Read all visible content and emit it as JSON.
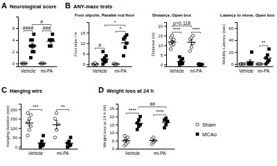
{
  "chart_data": [
    {
      "type": "scatter",
      "panel": "A",
      "title": "Neurological score",
      "categories": [
        "Vehicle",
        "mi-PA"
      ],
      "ylim": [
        -0.5,
        8
      ],
      "yticks": [
        0,
        2,
        4,
        6
      ],
      "series": [
        {
          "name": "Sham",
          "color": "#ffffff",
          "marker": "circle",
          "points": [
            [
              0,
              0,
              0,
              0,
              0,
              0,
              0,
              0
            ],
            [
              0,
              0,
              0,
              0,
              0
            ]
          ],
          "values": [
            0,
            0
          ],
          "errors": [
            0,
            0
          ]
        },
        {
          "name": "MCAo",
          "color": "#000000",
          "marker": "square",
          "points": [
            [
              1,
              2,
              2,
              3,
              3,
              3,
              4,
              4,
              5
            ],
            [
              3,
              3,
              4,
              4,
              4,
              5
            ]
          ],
          "values": [
            3,
            3.8
          ],
          "errors": [
            0.44,
            0.31
          ]
        }
      ],
      "annotations": [
        {
          "text": "####",
          "category": "Vehicle"
        },
        {
          "text": "###",
          "category": "mi-PA"
        },
        {
          "text": "#",
          "series": "MCAo"
        }
      ]
    },
    {
      "type": "scatter",
      "panel": "B",
      "panel_title": "ANY-maze tests",
      "title": "Foot slips/m, Parallel rod floor",
      "ylabel": "Foot slips / m",
      "categories": [
        "Vehicle",
        "mi-PA"
      ],
      "ylim": [
        -1,
        20
      ],
      "yticks": [
        0,
        5,
        10,
        15
      ],
      "series": [
        {
          "name": "Sham",
          "color": "#ffffff",
          "marker": "circle",
          "points": [
            [
              0,
              0,
              0,
              0,
              0.3,
              0,
              0,
              0.5
            ],
            [
              0,
              0,
              0,
              0.4,
              0
            ]
          ],
          "values": [
            0.1,
            0.1
          ],
          "errors": [
            0.07,
            0.08
          ]
        },
        {
          "name": "MCAo",
          "color": "#000000",
          "marker": "square",
          "points": [
            [
              0,
              1,
              1.5,
              2,
              3,
              4,
              6
            ],
            [
              4,
              8,
              10,
              12,
              13,
              14
            ]
          ],
          "values": [
            2.5,
            10.2
          ],
          "errors": [
            0.8,
            1.5
          ]
        }
      ],
      "annotations": [
        {
          "text": "#",
          "category": "Vehicle"
        },
        {
          "text": "*",
          "category": "mi-PA"
        },
        {
          "text": "*",
          "series": "MCAo"
        }
      ]
    },
    {
      "type": "scatter",
      "title": "Distance, Open box",
      "ylabel": "Distance (m)",
      "categories": [
        "Vehicle",
        "mi-PA"
      ],
      "ylim": [
        -1,
        22
      ],
      "yticks": [
        0,
        5,
        10,
        15,
        20
      ],
      "series": [
        {
          "name": "Sham",
          "color": "#ffffff",
          "marker": "circle",
          "points": [
            [
              8,
              10,
              10.5,
              11,
              12,
              13,
              14,
              15
            ],
            [
              7,
              9,
              11,
              13,
              14,
              15
            ]
          ],
          "values": [
            11.7,
            11.5
          ],
          "errors": [
            0.8,
            1.3
          ]
        },
        {
          "name": "MCAo",
          "color": "#000000",
          "marker": "square",
          "points": [
            [
              0,
              0.3,
              0.5,
              1,
              2,
              3,
              4
            ],
            [
              0,
              0,
              0,
              0.3,
              0
            ]
          ],
          "values": [
            1.5,
            0.1
          ],
          "errors": [
            0.6,
            0.06
          ]
        }
      ],
      "annotations": [
        {
          "text": "****",
          "category": "Vehicle"
        },
        {
          "text": "****",
          "category": "mi-PA"
        },
        {
          "text": "p=0.118",
          "series": "Sham"
        }
      ]
    },
    {
      "type": "scatter",
      "title": "Latency to move, Open box",
      "ylabel": "Mobility Latency (sec)",
      "categories": [
        "Vehicle",
        "mi-PA"
      ],
      "ylim": [
        -4,
        70
      ],
      "yticks": [
        0,
        20,
        40,
        60
      ],
      "series": [
        {
          "name": "Sham",
          "color": "#ffffff",
          "marker": "circle",
          "points": [
            [
              0,
              0,
              0,
              0,
              0,
              0,
              0
            ],
            [
              0,
              0,
              0,
              0,
              0
            ]
          ],
          "values": [
            0,
            0
          ],
          "errors": [
            0,
            0
          ]
        },
        {
          "name": "MCAo",
          "color": "#000000",
          "marker": "square",
          "points": [
            [
              0,
              0,
              0,
              0,
              2,
              20
            ],
            [
              0,
              3,
              6,
              10,
              15,
              25
            ]
          ],
          "values": [
            3.7,
            9.8
          ],
          "errors": [
            3.3,
            3.8
          ]
        }
      ],
      "annotations": [
        {
          "text": "**",
          "category": "mi-PA"
        }
      ]
    },
    {
      "type": "scatter",
      "panel": "C",
      "title": "Hanging wire",
      "ylabel": "Hanging duration (sec)",
      "categories": [
        "Vehicle",
        "mi-PA"
      ],
      "ylim": [
        -10,
        230
      ],
      "yticks": [
        0,
        50,
        100,
        150,
        200
      ],
      "series": [
        {
          "name": "Sham",
          "color": "#ffffff",
          "marker": "circle",
          "points": [
            [
              60,
              90,
              110,
              130,
              150,
              170,
              180
            ],
            [
              50,
              90,
              120,
              150,
              180
            ]
          ],
          "values": [
            127,
            118
          ],
          "errors": [
            16,
            23
          ]
        },
        {
          "name": "MCAo",
          "color": "#000000",
          "marker": "square",
          "points": [
            [
              0,
              5,
              10,
              15,
              30,
              60
            ],
            [
              0,
              5,
              10,
              20,
              30,
              50
            ]
          ],
          "values": [
            20,
            19
          ],
          "errors": [
            9,
            8
          ]
        }
      ],
      "annotations": [
        {
          "text": "***",
          "category": "Vehicle"
        },
        {
          "text": "**",
          "category": "mi-PA"
        }
      ]
    },
    {
      "type": "scatter",
      "panel": "D",
      "title": "Weight loss at 24 h",
      "ylabel": "Weight loss at 24 h (%)",
      "categories": [
        "Vehicle",
        "mi-PA"
      ],
      "ylim": [
        0,
        28
      ],
      "yticks": [
        0,
        5,
        10,
        15,
        20,
        25
      ],
      "legend": "right",
      "series": [
        {
          "name": "Sham",
          "color": "#ffffff",
          "marker": "circle",
          "points": [
            [
              2,
              3,
              4,
              5,
              6,
              7,
              8
            ],
            [
              3,
              4,
              5,
              6,
              7
            ]
          ],
          "values": [
            5,
            5
          ],
          "errors": [
            0.8,
            0.7
          ]
        },
        {
          "name": "MCAo",
          "color": "#000000",
          "marker": "square",
          "points": [
            [
              12,
              14,
              15,
              16,
              18,
              20
            ],
            [
              13,
              15,
              17,
              18,
              19
            ]
          ],
          "values": [
            15.8,
            16.4
          ],
          "errors": [
            1.2,
            1.1
          ]
        }
      ],
      "annotations": [
        {
          "text": "****",
          "category": "Vehicle"
        },
        {
          "text": "****",
          "category": "mi-PA"
        },
        {
          "text": "##",
          "series": "MCAo"
        }
      ]
    }
  ]
}
